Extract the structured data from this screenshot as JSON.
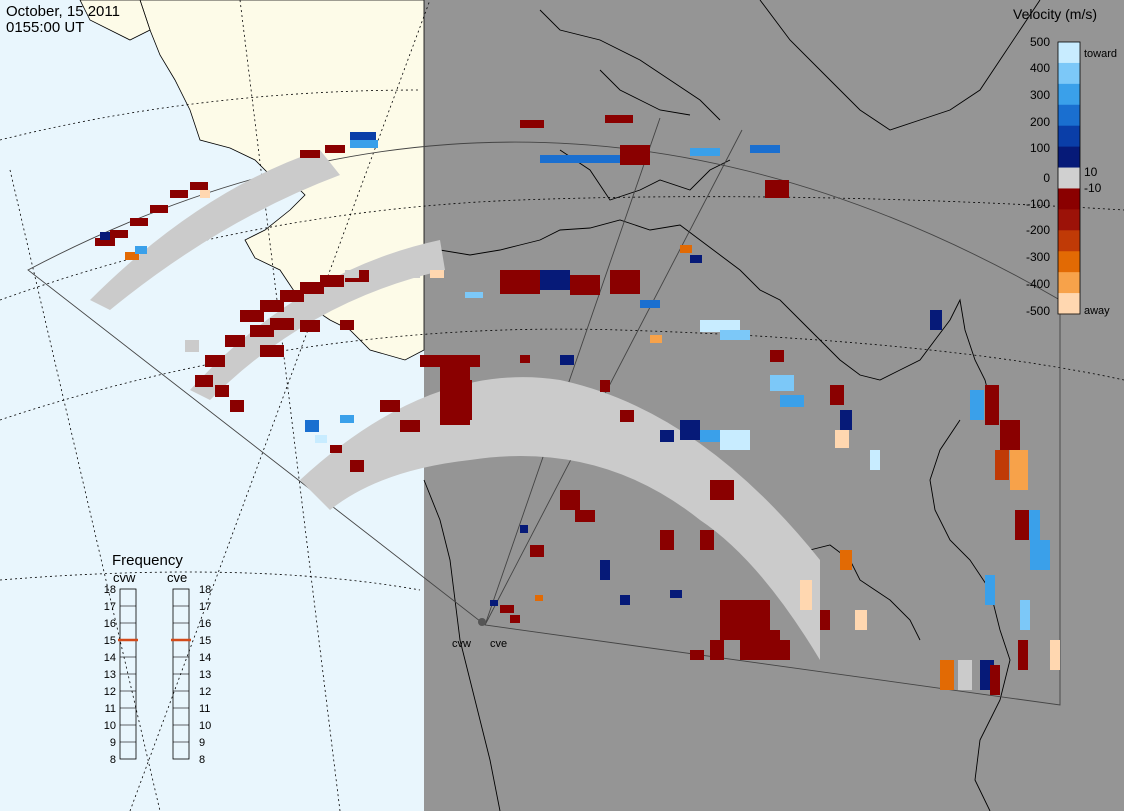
{
  "header": {
    "date": "October, 15 2011",
    "time": "0155:00 UT"
  },
  "colorbar": {
    "title": "Velocity (m/s)",
    "ticks": [
      "500",
      "400",
      "300",
      "200",
      "100",
      "10",
      "0",
      "-10",
      "-100",
      "-200",
      "-300",
      "-400",
      "-500"
    ],
    "toward_label": "toward",
    "away_label": "away",
    "colors": [
      "#c8ecff",
      "#7cc8f8",
      "#3aa0ea",
      "#1a6fd0",
      "#0a3ea8",
      "#061a78",
      "#d0d0d0",
      "#8a0000",
      "#9c1208",
      "#c03a06",
      "#e26a04",
      "#f7a24a",
      "#ffd7b0"
    ]
  },
  "frequency": {
    "title": "Frequency",
    "radars": [
      {
        "name": "cvw",
        "value_mhz": 15
      },
      {
        "name": "cve",
        "value_mhz": 15
      }
    ],
    "scale": [
      "18",
      "17",
      "16",
      "15",
      "14",
      "13",
      "12",
      "11",
      "10",
      "9",
      "8"
    ],
    "marker_color": "#d34a1a"
  },
  "radars": {
    "site_labels": [
      "cvw",
      "cve"
    ]
  },
  "map": {
    "ocean_color": "#e9f6fd",
    "land_color": "#fdfbe8",
    "night_color": "#959595",
    "ground_scatter_color": "#cbcbcb"
  }
}
